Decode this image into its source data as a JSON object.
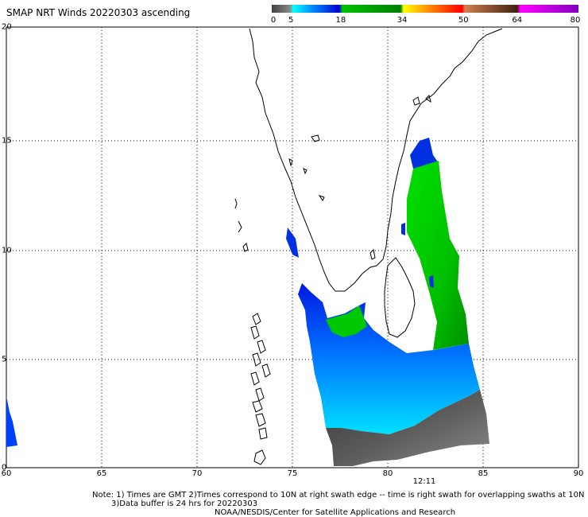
{
  "title": "SMAP NRT Winds 20220303 ascending",
  "colorbar": {
    "ticks": [
      "0",
      "5",
      "18",
      "34",
      "50",
      "64",
      "80"
    ],
    "tick_values": [
      0,
      5,
      18,
      34,
      50,
      64,
      80
    ],
    "segments": [
      {
        "from": 0,
        "to": 5,
        "color": "#707070"
      },
      {
        "from": 5,
        "to": 12,
        "color": "#00e6ff"
      },
      {
        "from": 12,
        "to": 18,
        "color": "#0000e0"
      },
      {
        "from": 18,
        "to": 34,
        "color": "#00c800"
      },
      {
        "from": 34,
        "to": 50,
        "color": "#ff2020"
      },
      {
        "from": 50,
        "to": 64,
        "color": "#8b5a2b"
      },
      {
        "from": 64,
        "to": 80,
        "color": "#c000c0"
      }
    ]
  },
  "axes": {
    "lon_ticks": [
      "60",
      "65",
      "70",
      "75",
      "80",
      "85",
      "90"
    ],
    "lat_ticks": [
      "0",
      "5",
      "10",
      "15",
      "20"
    ]
  },
  "time_label": "12:11",
  "notes": {
    "line1": "Note: 1) Times are GMT 2)Times correspond to 10N at right swath edge -- time is right swath for overlapping swaths at 10N",
    "line2": "3)Data buffer is 24 hrs for 20220303",
    "line3": "NOAA/NESDIS/Center for Satellite Applications and Research"
  }
}
